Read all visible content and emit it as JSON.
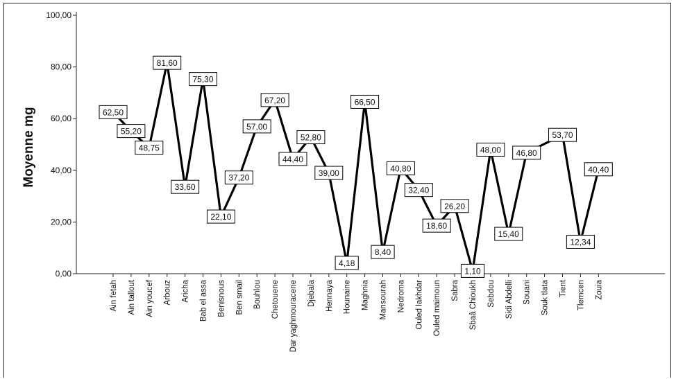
{
  "chart_data": {
    "type": "line",
    "ylabel": "Moyenne mg",
    "xlabel": "",
    "ylim": [
      0,
      100
    ],
    "yticks": [
      "0,00",
      "20,00",
      "40,00",
      "60,00",
      "80,00",
      "100,00"
    ],
    "grid": false,
    "categories": [
      "Ain fetah",
      "Ain tallout",
      "Ain youcef",
      "Arbouz",
      "Aricha",
      "Bab el assa",
      "Benisnous",
      "Ben smail",
      "Bouhlou",
      "Chetouene",
      "Dar yaghmouracene",
      "Djebala",
      "Hennaya",
      "Hounaine",
      "Maghnia",
      "Mansourah",
      "Nedroma",
      "Ouled lakhdar",
      "Ouled maimoun",
      "Sabra",
      "Sbaâ Chioukh",
      "Sebdou",
      "Sidi Abdelli",
      "Souani",
      "Souk tlata",
      "Tient",
      "Tlemcen",
      "Zouia"
    ],
    "values": [
      62.5,
      55.2,
      48.75,
      81.6,
      33.6,
      75.3,
      22.1,
      37.2,
      57.0,
      67.2,
      44.4,
      52.8,
      39.0,
      4.18,
      66.5,
      8.4,
      40.8,
      32.4,
      18.6,
      26.2,
      1.1,
      48.0,
      15.4,
      46.8,
      null,
      53.7,
      12.34,
      40.4
    ],
    "labels": [
      "62,50",
      "55,20",
      "48,75",
      "81,60",
      "33,60",
      "75,30",
      "22,10",
      "37,20",
      "57,00",
      "67,20",
      "44,40",
      "52,80",
      "39,00",
      "4,18",
      "66,50",
      "8,40",
      "40,80",
      "32,40",
      "18,60",
      "26,20",
      "1,10",
      "48,00",
      "15,40",
      "46,80",
      "",
      "53,70",
      "12,34",
      "40,40"
    ]
  },
  "colors": {
    "line": "#000000",
    "label_bg": "#ffffff",
    "label_border": "#000000"
  }
}
